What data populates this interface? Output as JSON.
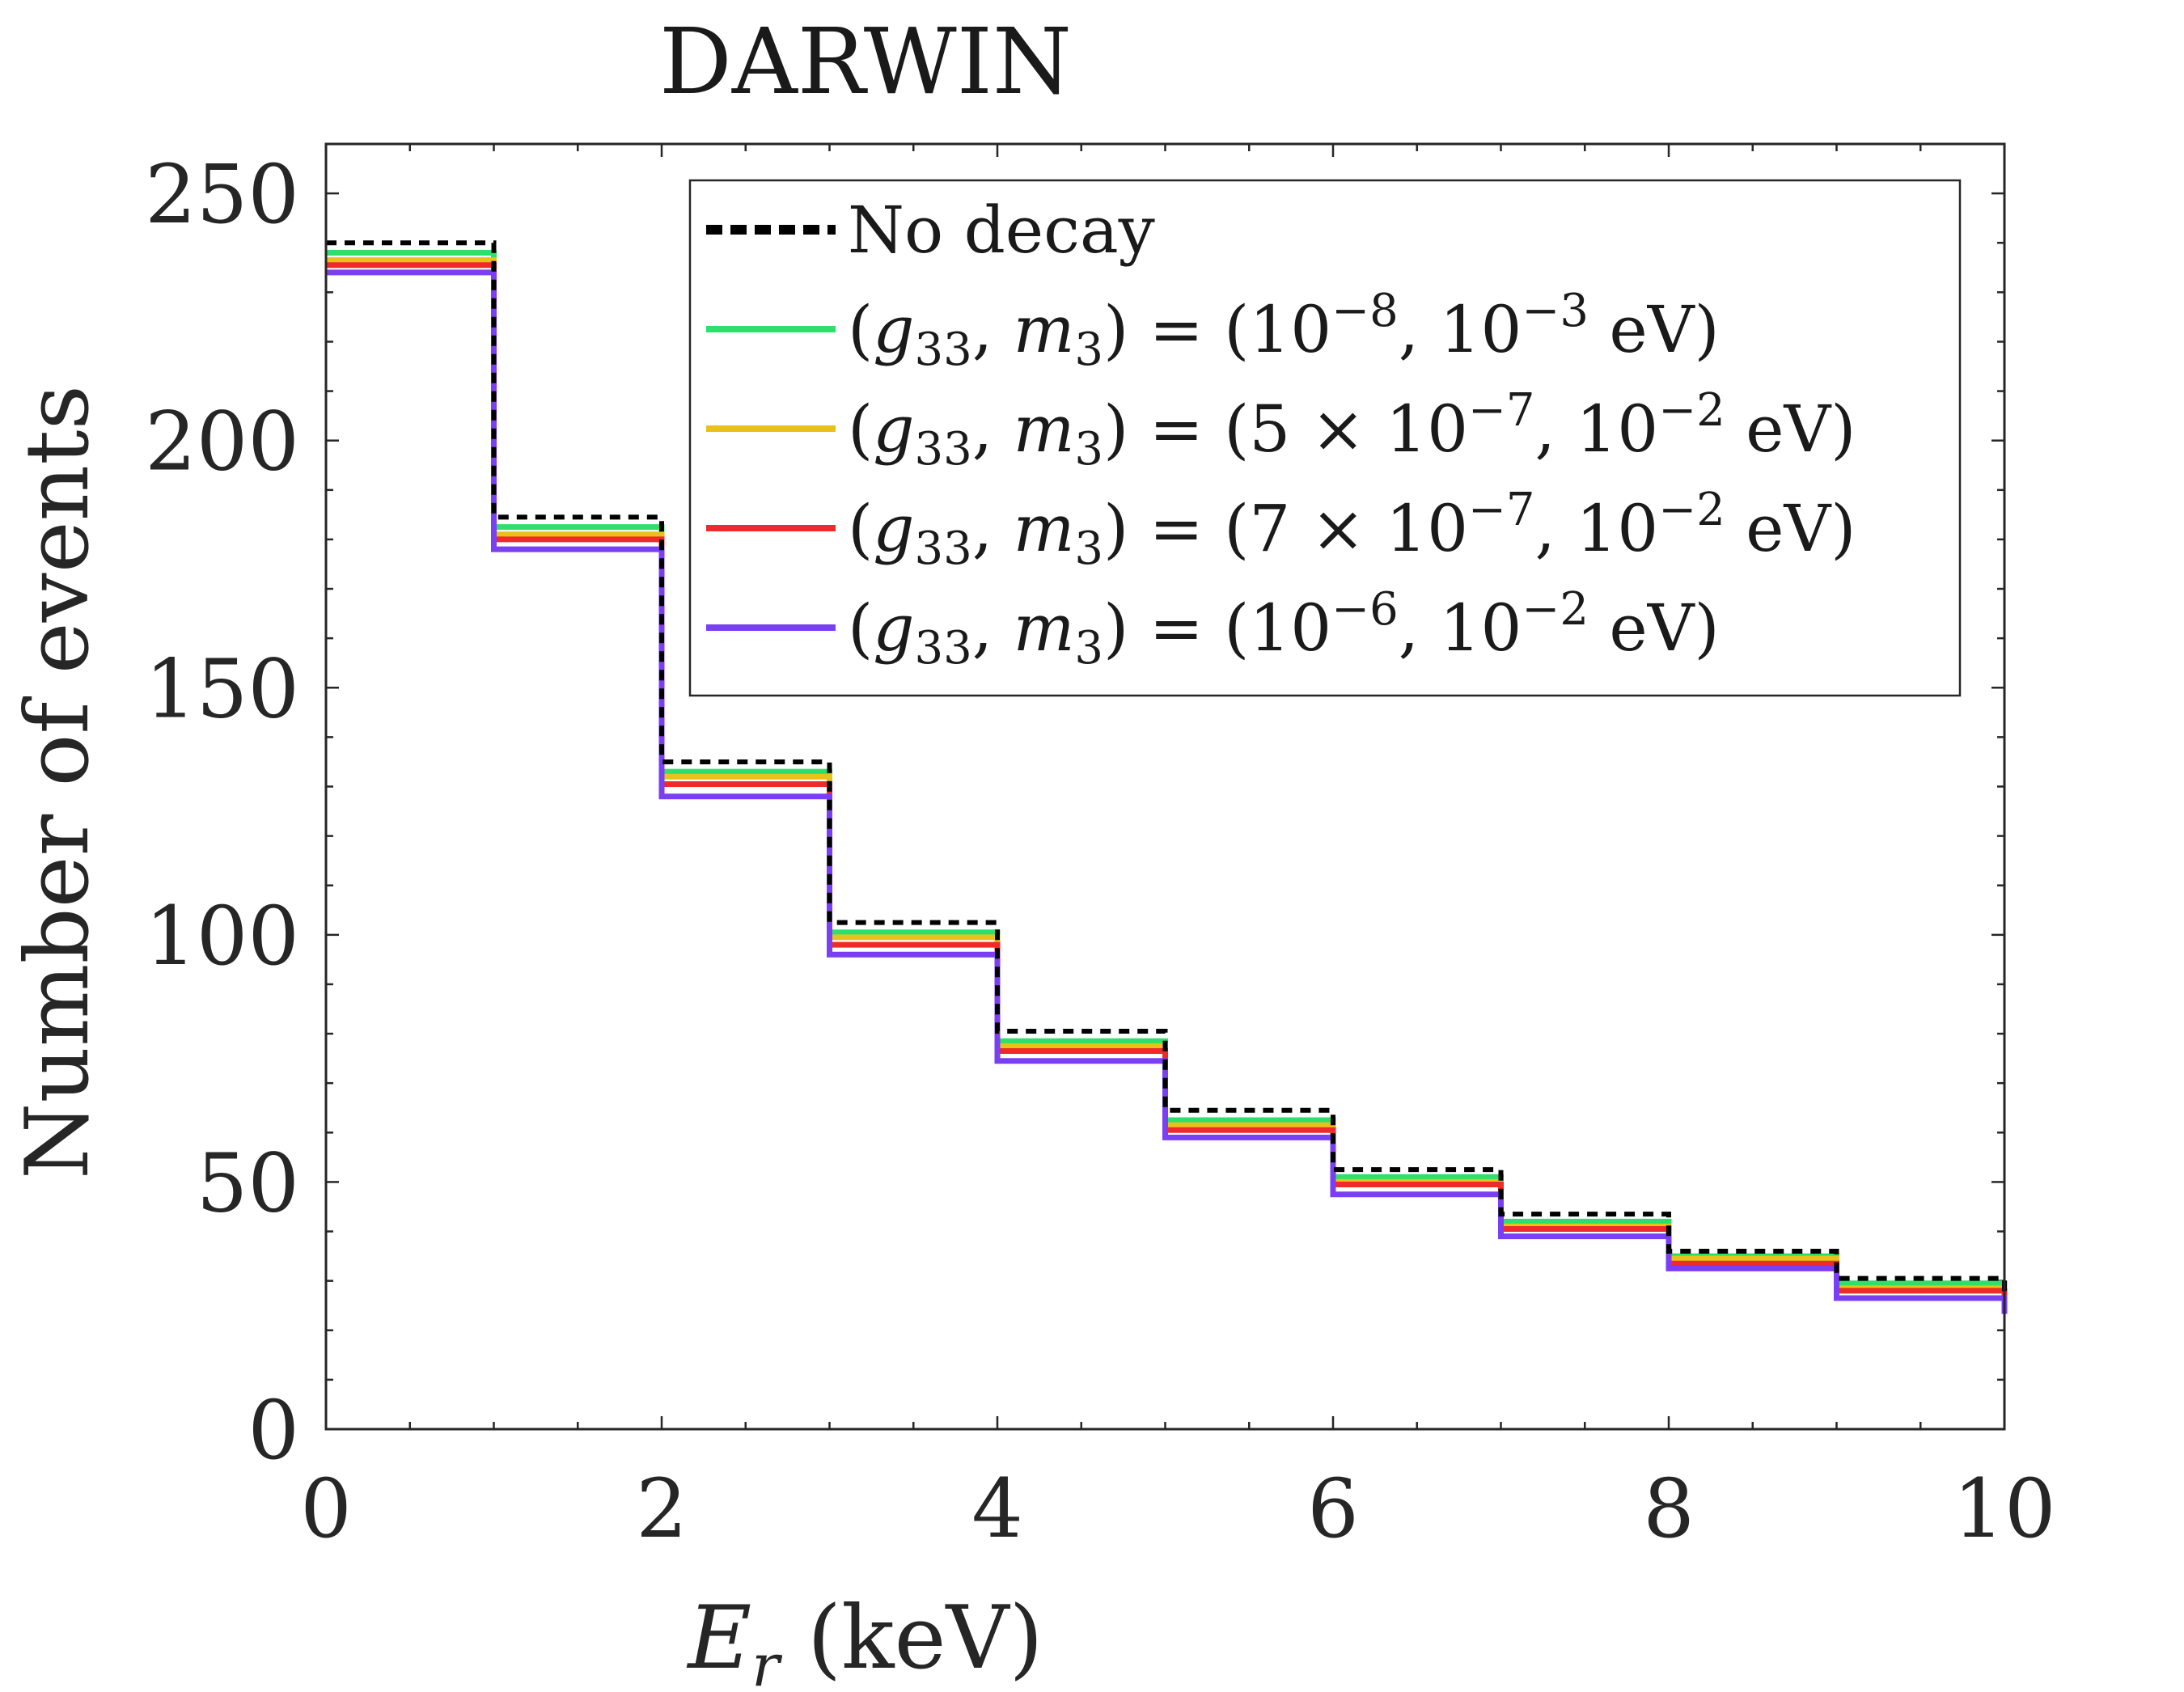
{
  "chart_data": {
    "type": "line",
    "subtype": "step",
    "title": "DARWIN",
    "xlabel": "E_r (keV)",
    "xlabel_main": "E",
    "xlabel_sub": "r",
    "xlabel_unit": " (keV)",
    "ylabel": "Number of events",
    "xlim": [
      0,
      10
    ],
    "ylim": [
      0,
      260
    ],
    "xticks": [
      0,
      2,
      4,
      6,
      8,
      10
    ],
    "xtick_labels": [
      "0",
      "2",
      "4",
      "6",
      "8",
      "10"
    ],
    "yticks": [
      0,
      50,
      100,
      150,
      200,
      250
    ],
    "ytick_labels": [
      "0",
      "50",
      "100",
      "150",
      "200",
      "250"
    ],
    "legend_position": "top-right",
    "bin_edges": [
      0,
      1,
      2,
      3,
      4,
      5,
      6,
      7,
      8,
      9,
      10
    ],
    "series": [
      {
        "name": "No decay",
        "color": "#000000",
        "style": "dashed",
        "values": [
          240,
          184.5,
          135,
          102.5,
          80.5,
          64.5,
          52.5,
          43.5,
          36,
          30.5
        ],
        "legend_parts": [
          {
            "t": "No decay"
          }
        ]
      },
      {
        "name": "(g33, m3) = (10^-8, 10^-3 eV)",
        "color": "#2ee06b",
        "style": "solid",
        "values": [
          238,
          182.5,
          133,
          100.5,
          78.5,
          62.5,
          51,
          42,
          35,
          29.5
        ],
        "legend_parts": [
          {
            "t": "("
          },
          {
            "t": "g",
            "i": 1
          },
          {
            "t": "33",
            "sub": 1
          },
          {
            "t": ", "
          },
          {
            "t": "m",
            "i": 1
          },
          {
            "t": "3",
            "sub": 1
          },
          {
            "t": ") = (10"
          },
          {
            "t": "−8",
            "sup": 1
          },
          {
            "t": ", 10"
          },
          {
            "t": "−3",
            "sup": 1
          },
          {
            "t": " eV)"
          }
        ]
      },
      {
        "name": "(g33, m3) = (5 × 10^-7, 10^-2 eV)",
        "color": "#e8c21a",
        "style": "solid",
        "values": [
          236.5,
          181,
          132,
          99.5,
          77.5,
          61.5,
          50,
          41,
          34.5,
          28.5
        ],
        "legend_parts": [
          {
            "t": "("
          },
          {
            "t": "g",
            "i": 1
          },
          {
            "t": "33",
            "sub": 1
          },
          {
            "t": ", "
          },
          {
            "t": "m",
            "i": 1
          },
          {
            "t": "3",
            "sub": 1
          },
          {
            "t": ") = (5 × 10"
          },
          {
            "t": "−7",
            "sup": 1
          },
          {
            "t": ", 10"
          },
          {
            "t": "−2",
            "sup": 1
          },
          {
            "t": " eV)"
          }
        ]
      },
      {
        "name": "(g33, m3) = (7 × 10^-7, 10^-2 eV)",
        "color": "#ee2a2a",
        "style": "solid",
        "values": [
          235.5,
          180,
          130.5,
          98,
          76.5,
          60.5,
          49.5,
          40.5,
          33.5,
          28
        ],
        "legend_parts": [
          {
            "t": "("
          },
          {
            "t": "g",
            "i": 1
          },
          {
            "t": "33",
            "sub": 1
          },
          {
            "t": ", "
          },
          {
            "t": "m",
            "i": 1
          },
          {
            "t": "3",
            "sub": 1
          },
          {
            "t": ") = (7 × 10"
          },
          {
            "t": "−7",
            "sup": 1
          },
          {
            "t": ", 10"
          },
          {
            "t": "−2",
            "sup": 1
          },
          {
            "t": " eV)"
          }
        ]
      },
      {
        "name": "(g33, m3) = (10^-6, 10^-2 eV)",
        "color": "#7a3ff2",
        "style": "solid",
        "values": [
          234,
          178,
          128,
          96,
          74.5,
          59,
          47.5,
          39,
          32.5,
          26.5
        ],
        "legend_parts": [
          {
            "t": "("
          },
          {
            "t": "g",
            "i": 1
          },
          {
            "t": "33",
            "sub": 1
          },
          {
            "t": ", "
          },
          {
            "t": "m",
            "i": 1
          },
          {
            "t": "3",
            "sub": 1
          },
          {
            "t": ") = (10"
          },
          {
            "t": "−6",
            "sup": 1
          },
          {
            "t": ", 10"
          },
          {
            "t": "−2",
            "sup": 1
          },
          {
            "t": " eV)"
          }
        ]
      }
    ]
  }
}
